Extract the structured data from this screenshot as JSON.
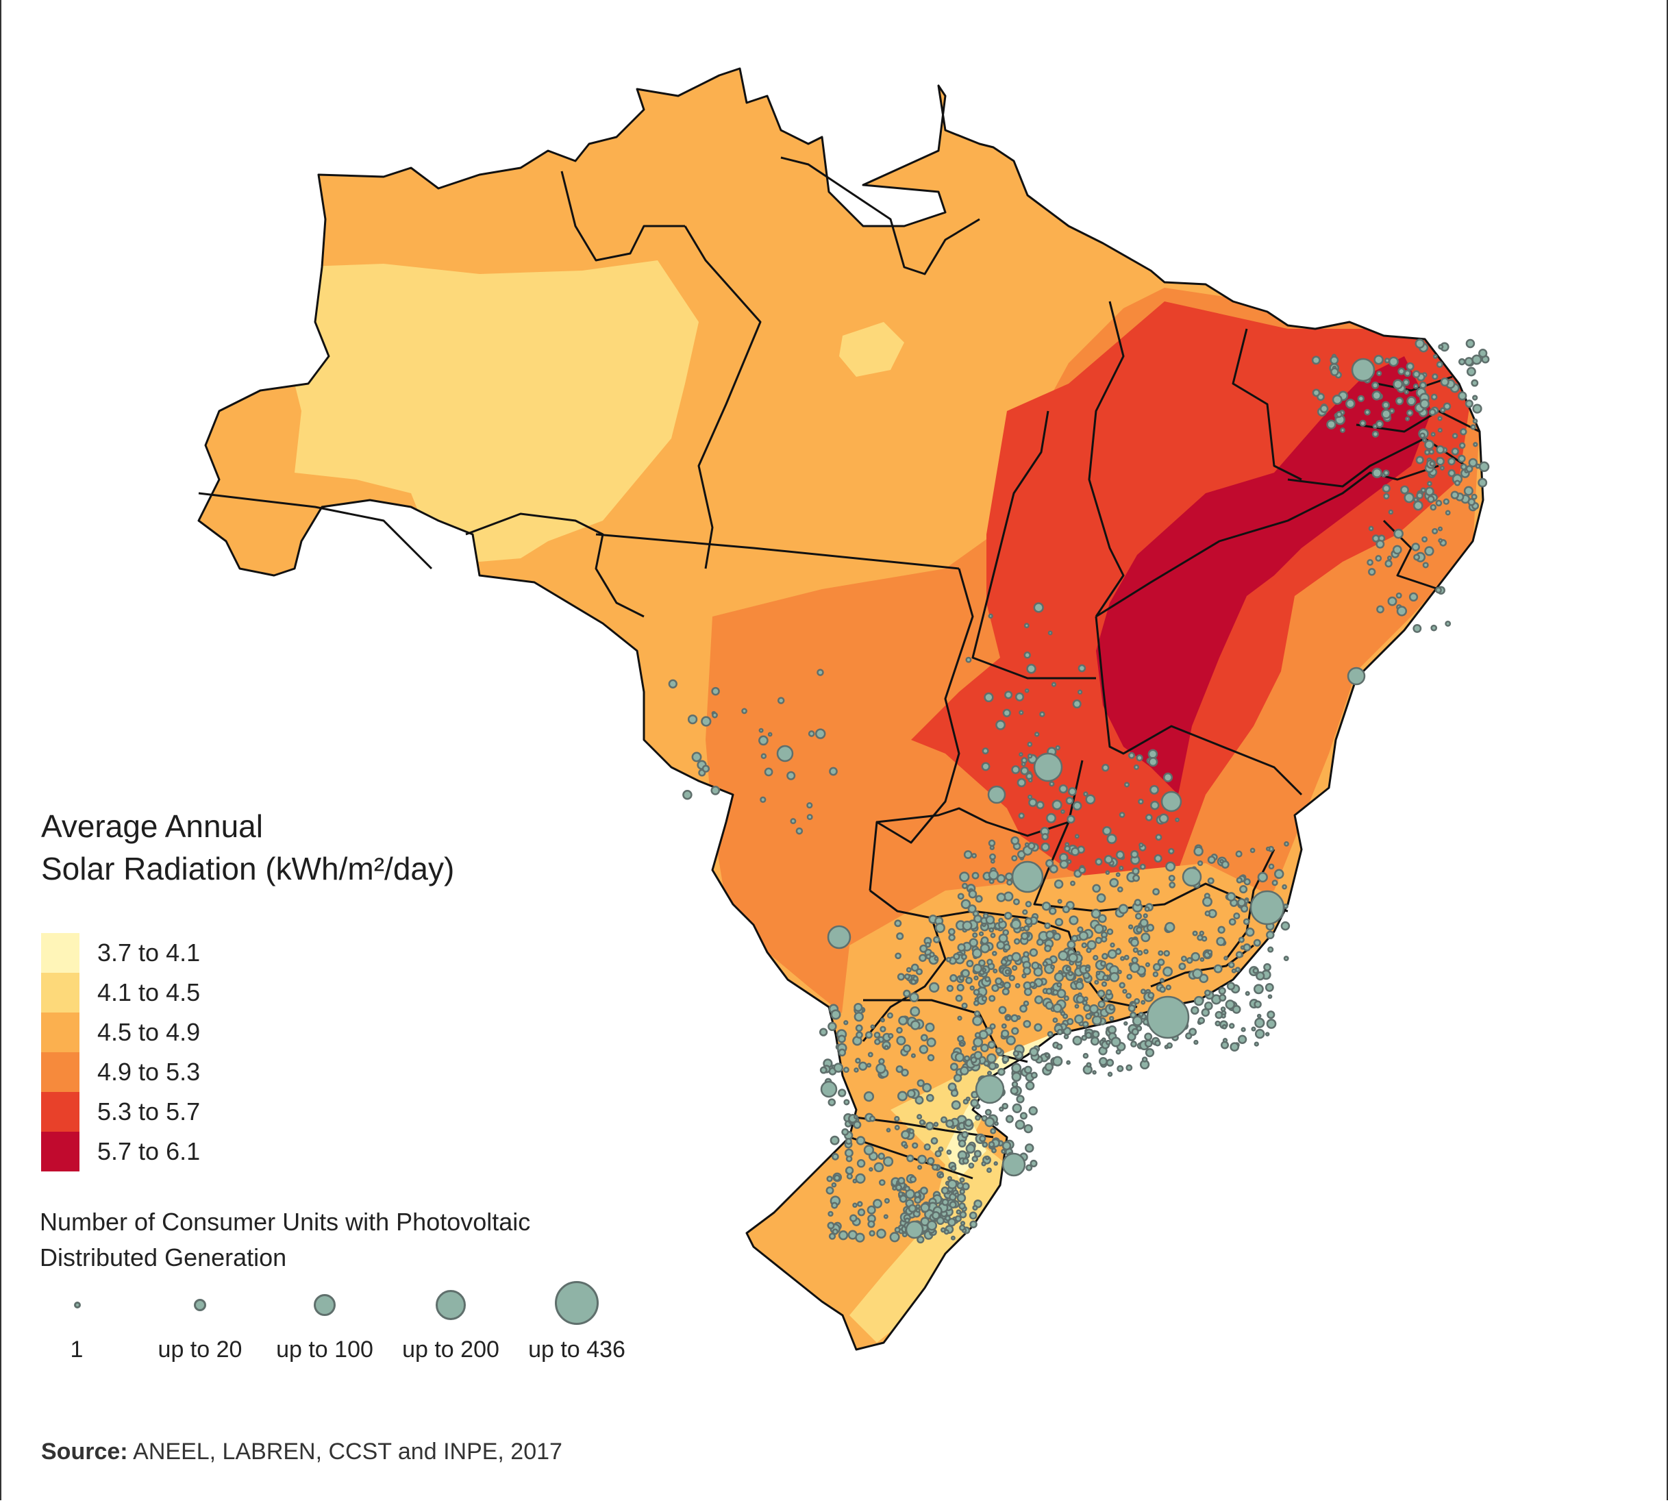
{
  "legend": {
    "title_lines": [
      "Average Annual",
      "Solar Radiation (kWh/m²/day)"
    ],
    "classes": [
      {
        "label": "3.7 to 4.1",
        "color": "#fff5b8"
      },
      {
        "label": "4.1 to 4.5",
        "color": "#fdd97a"
      },
      {
        "label": "4.5 to 4.9",
        "color": "#fbb04f"
      },
      {
        "label": "4.9 to 5.3",
        "color": "#f68a3c"
      },
      {
        "label": "5.3 to 5.7",
        "color": "#e8412a"
      },
      {
        "label": "5.7 to 6.1",
        "color": "#c10a2e"
      }
    ]
  },
  "pv_legend": {
    "title_lines": [
      "Number of Consumer Units with Photovoltaic",
      "Distributed Generation"
    ],
    "sizes": [
      {
        "label": "1",
        "max_units": 1
      },
      {
        "label": "up to 20",
        "max_units": 20
      },
      {
        "label": "up to 100",
        "max_units": 100
      },
      {
        "label": "up to 200",
        "max_units": 200
      },
      {
        "label": "up to 436",
        "max_units": 436
      }
    ],
    "dot_fill": "#8fb3a6",
    "dot_stroke": "#5f6f6c"
  },
  "source": {
    "label": "Source:",
    "text": "ANEEL, LABREN, CCST and INPE, 2017"
  },
  "map_style": {
    "border_color": "#111111",
    "background": "#ffffff"
  }
}
